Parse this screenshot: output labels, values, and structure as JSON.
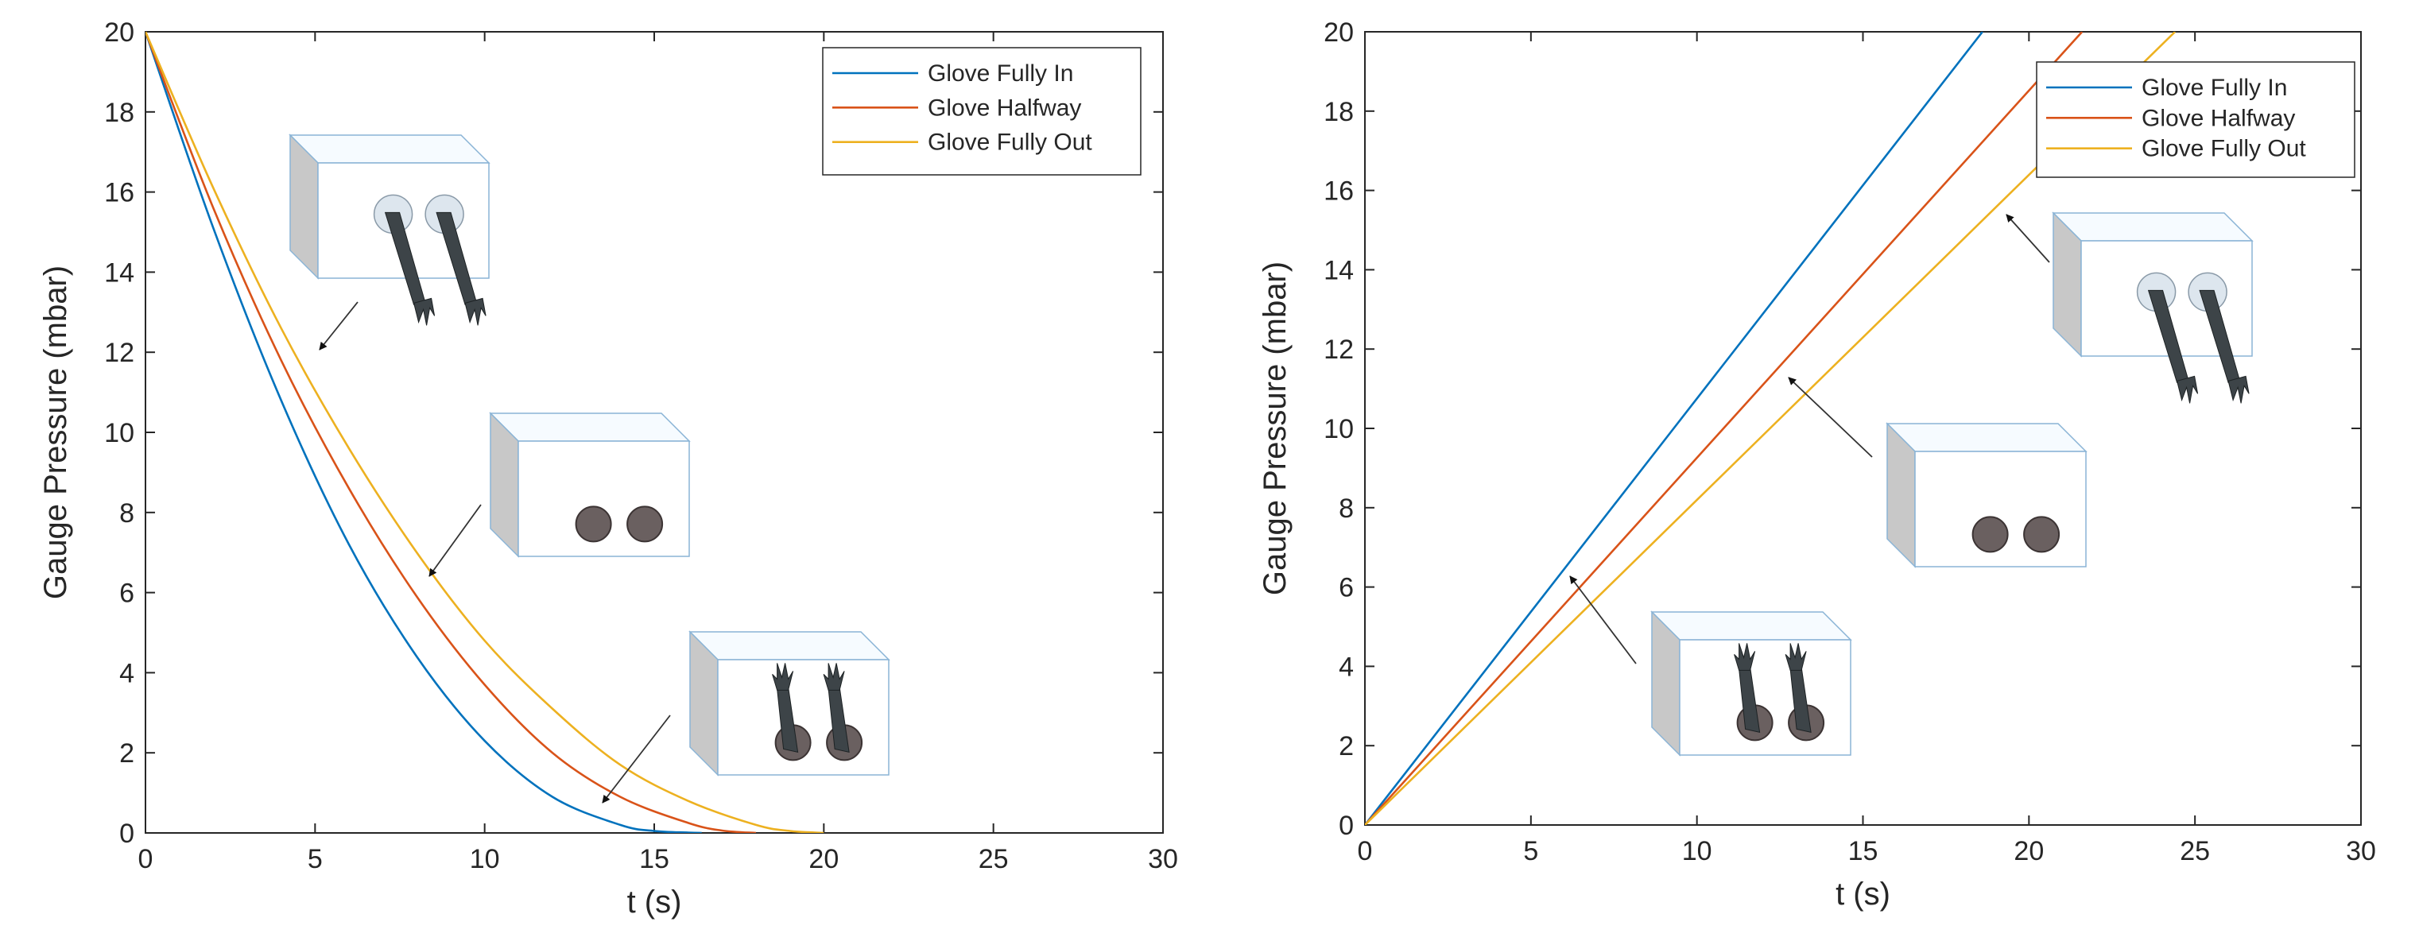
{
  "chart_data": [
    {
      "type": "line",
      "ylabel": "Gauge Pressure (mbar)",
      "xlabel": "t (s)",
      "xlim": [
        0,
        30
      ],
      "ylim": [
        0,
        20
      ],
      "xticks": [
        0,
        5,
        10,
        15,
        20,
        25,
        30
      ],
      "yticks": [
        0,
        2,
        4,
        6,
        8,
        10,
        12,
        14,
        16,
        18,
        20
      ],
      "legend_position": "top-right",
      "grid": false,
      "series": [
        {
          "name": "Glove Fully In",
          "color": "#0072BD",
          "x": [
            0,
            2,
            4,
            6,
            8,
            10,
            12,
            14,
            15,
            16,
            16.4
          ],
          "y": [
            20,
            15.1,
            10.8,
            7.2,
            4.4,
            2.3,
            0.9,
            0.2,
            0.05,
            0.01,
            0
          ]
        },
        {
          "name": "Glove Halfway",
          "color": "#D95319",
          "x": [
            0,
            2,
            4,
            6,
            8,
            10,
            12,
            14,
            16,
            17,
            18
          ],
          "y": [
            20,
            15.6,
            11.8,
            8.6,
            5.9,
            3.7,
            2.0,
            0.9,
            0.25,
            0.06,
            0
          ]
        },
        {
          "name": "Glove Fully Out",
          "color": "#EDB120",
          "x": [
            0,
            2,
            4,
            6,
            8,
            10,
            12,
            14,
            16,
            18,
            19,
            20
          ],
          "y": [
            20,
            16.1,
            12.6,
            9.6,
            7.0,
            4.8,
            3.1,
            1.7,
            0.8,
            0.2,
            0.05,
            0
          ]
        }
      ],
      "annotation_icons": [
        "glove-box-gloves-in-icon",
        "glove-box-ports-icon",
        "glove-box-gloves-out-icon"
      ]
    },
    {
      "type": "line",
      "ylabel": "Gauge Pressure (mbar)",
      "xlabel": "t (s)",
      "xlim": [
        0,
        30
      ],
      "ylim": [
        0,
        20
      ],
      "xticks": [
        0,
        5,
        10,
        15,
        20,
        25,
        30
      ],
      "yticks": [
        0,
        2,
        4,
        6,
        8,
        10,
        12,
        14,
        16,
        18,
        20
      ],
      "legend_position": "top-right",
      "grid": false,
      "series": [
        {
          "name": "Glove Fully In",
          "color": "#0072BD",
          "x": [
            0,
            18.6
          ],
          "y": [
            0,
            20
          ]
        },
        {
          "name": "Glove Halfway",
          "color": "#D95319",
          "x": [
            0,
            21.6
          ],
          "y": [
            0,
            20
          ]
        },
        {
          "name": "Glove Fully Out",
          "color": "#EDB120",
          "x": [
            0,
            24.4
          ],
          "y": [
            0,
            20
          ]
        }
      ],
      "annotation_icons": [
        "glove-box-gloves-out-icon",
        "glove-box-ports-icon",
        "glove-box-gloves-in-icon"
      ]
    }
  ]
}
